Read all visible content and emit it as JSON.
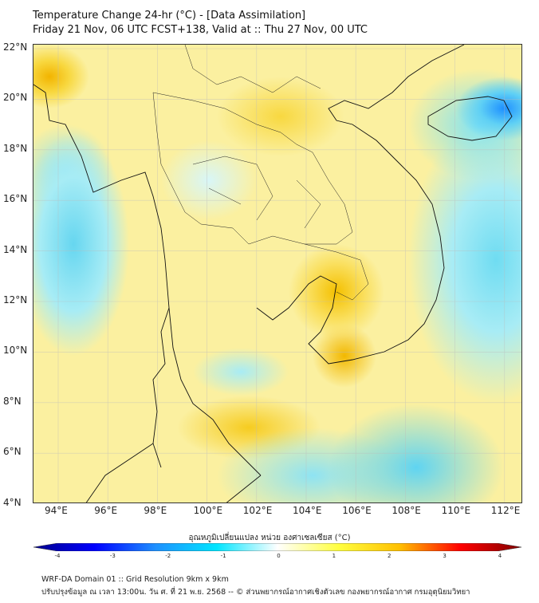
{
  "header": {
    "title": "Temperature Change 24-hr (°C) - [Data Assimilation]",
    "subtitle": "Friday 21 Nov, 06 UTC FCST+138, Valid at :: Thu 27 Nov, 00 UTC"
  },
  "map": {
    "lat_labels": [
      "22°N",
      "20°N",
      "18°N",
      "16°N",
      "14°N",
      "12°N",
      "10°N",
      "8°N",
      "6°N",
      "4°N"
    ],
    "lon_labels": [
      "94°E",
      "96°E",
      "98°E",
      "100°E",
      "102°E",
      "104°E",
      "106°E",
      "108°E",
      "110°E",
      "112°E"
    ]
  },
  "colorbar": {
    "label": "อุณหภูมิเปลี่ยนแปลง หน่วย องศาเซลเซียส (°C)",
    "ticks": [
      "-4",
      "-3",
      "-2",
      "-1",
      "0",
      "1",
      "2",
      "3",
      "4"
    ],
    "range": [
      -4,
      4
    ],
    "colors": [
      "#00008b",
      "#0000ff",
      "#1e90ff",
      "#00e5ff",
      "#ffffff",
      "#ffff40",
      "#ffc000",
      "#ff0000",
      "#800000"
    ]
  },
  "footer": {
    "line1": "WRF-DA Domain 01 :: Grid Resolution 9km x 9km",
    "line2": "ปรับปรุงข้อมูล ณ เวลา 13:00น. วัน ศ. ที่ 21 พ.ย. 2568 -- © ส่วนพยากรณ์อากาศเชิงตัวเลข กองพยากรณ์อากาศ กรมอุตุนิยมวิทยา"
  }
}
